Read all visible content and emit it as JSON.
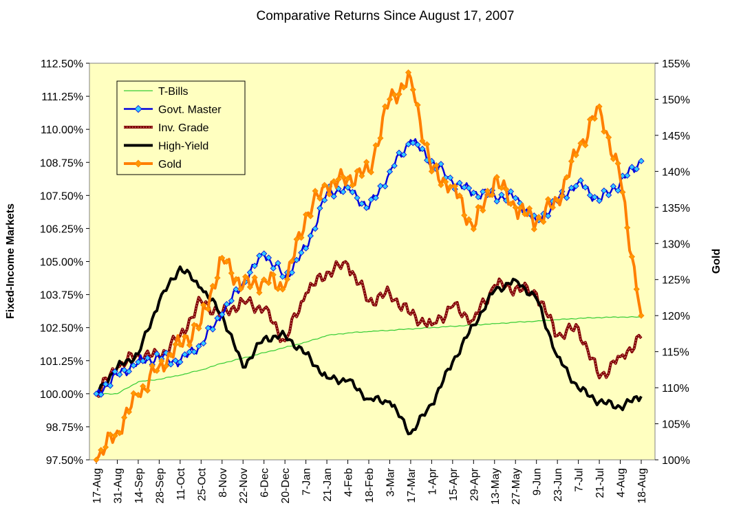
{
  "colors": {
    "plot_bg": "#FFFFC0",
    "tbills": "#33CC33",
    "govt": "#0000DD",
    "govt_marker": "#33CCFF",
    "invgrade": "#800000",
    "highyield": "#000000",
    "gold": "#FF7F00",
    "gold_marker": "#FF9900"
  },
  "chart_data": {
    "type": "line",
    "title": "Comparative Returns Since August 17, 2007",
    "ylabel": "Fixed-Income Markets",
    "y2label": "Gold",
    "ylim": [
      97.5,
      112.5
    ],
    "y2lim": [
      100,
      155
    ],
    "yticks": [
      "97.50%",
      "98.75%",
      "100.00%",
      "101.25%",
      "102.50%",
      "103.75%",
      "105.00%",
      "106.25%",
      "107.50%",
      "108.75%",
      "110.00%",
      "111.25%",
      "112.50%"
    ],
    "y2ticks": [
      "100%",
      "105%",
      "110%",
      "115%",
      "120%",
      "125%",
      "130%",
      "135%",
      "140%",
      "145%",
      "150%",
      "155%"
    ],
    "categories": [
      "17-Aug",
      "31-Aug",
      "14-Sep",
      "28-Sep",
      "11-Oct",
      "25-Oct",
      "8-Nov",
      "22-Nov",
      "6-Dec",
      "20-Dec",
      "7-Jan",
      "21-Jan",
      "4-Feb",
      "18-Feb",
      "3-Mar",
      "17-Mar",
      "1-Apr",
      "15-Apr",
      "29-Apr",
      "13-May",
      "27-May",
      "9-Jun",
      "23-Jun",
      "7-Jul",
      "21-Jul",
      "4-Aug",
      "18-Aug"
    ],
    "legend": [
      "T-Bills",
      "Govt. Master",
      "Inv. Grade",
      "High-Yield",
      "Gold"
    ],
    "legend_position": "top-left",
    "series": [
      {
        "name": "T-Bills",
        "axis": "left",
        "values": [
          100.0,
          100.0,
          100.45,
          100.55,
          100.7,
          100.9,
          101.15,
          101.35,
          101.55,
          101.75,
          101.95,
          102.2,
          102.3,
          102.35,
          102.4,
          102.45,
          102.5,
          102.55,
          102.6,
          102.65,
          102.7,
          102.75,
          102.8,
          102.85,
          102.88,
          102.9,
          102.9
        ]
      },
      {
        "name": "Govt. Master",
        "axis": "left",
        "values": [
          100.0,
          100.7,
          101.2,
          101.4,
          101.2,
          101.9,
          103.0,
          104.2,
          105.3,
          104.4,
          105.5,
          107.6,
          107.8,
          107.0,
          108.4,
          109.6,
          108.8,
          108.0,
          107.6,
          107.5,
          107.4,
          106.5,
          107.3,
          108.0,
          107.3,
          108.0,
          108.8
        ]
      },
      {
        "name": "Inv. Grade",
        "axis": "left",
        "values": [
          100.0,
          101.0,
          101.5,
          101.4,
          102.2,
          103.5,
          103.0,
          103.5,
          103.2,
          102.0,
          103.8,
          104.6,
          104.9,
          103.5,
          103.8,
          103.0,
          102.6,
          103.3,
          102.8,
          104.1,
          104.0,
          103.8,
          102.2,
          102.5,
          100.6,
          101.4,
          102.1
        ]
      },
      {
        "name": "High-Yield",
        "axis": "left",
        "values": [
          100.0,
          101.0,
          101.5,
          103.5,
          104.8,
          104.0,
          103.0,
          101.0,
          102.1,
          102.2,
          101.5,
          100.6,
          100.5,
          99.8,
          99.7,
          98.5,
          99.6,
          101.2,
          102.6,
          103.9,
          104.3,
          103.6,
          101.4,
          100.2,
          99.7,
          99.5,
          99.9
        ]
      },
      {
        "name": "Gold",
        "axis": "right",
        "values": [
          100.0,
          104.0,
          109.0,
          113.0,
          116.0,
          119.0,
          128.0,
          124.0,
          125.0,
          124.0,
          134.0,
          138.0,
          139.0,
          140.0,
          150.0,
          153.0,
          140.0,
          138.0,
          132.0,
          139.0,
          135.0,
          133.0,
          136.0,
          143.0,
          149.0,
          139.0,
          120.0
        ]
      }
    ]
  }
}
